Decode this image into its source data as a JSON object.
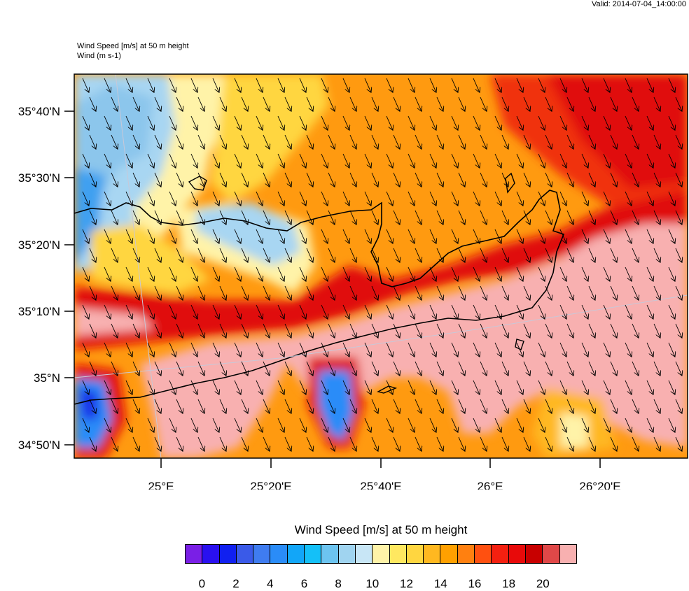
{
  "header": {
    "valid": "Valid: 2014-07-04_14:00:00",
    "field_title": "Wind Speed [m/s] at 50 m height",
    "vector_title": "Wind    (m s-1)"
  },
  "map": {
    "lat_labels": [
      "35°40'N",
      "35°30'N",
      "35°20'N",
      "35°10'N",
      "35°N",
      "34°50'N"
    ],
    "lon_labels": [
      "25°E",
      "25°20'E",
      "25°40'E",
      "26°E",
      "26°20'E"
    ],
    "wind_direction": "north-northwest (arrows point south-southeast)"
  },
  "colorbar": {
    "title": "Wind Speed [m/s] at 50 m height",
    "tick_labels": [
      "0",
      "2",
      "4",
      "6",
      "8",
      "10",
      "12",
      "14",
      "16",
      "18",
      "20"
    ],
    "colors": [
      "#7a1fe6",
      "#2a10f0",
      "#1020f0",
      "#3a5ae8",
      "#3f7cf0",
      "#2a8cf8",
      "#12a6f8",
      "#14c0f8",
      "#6cc4f0",
      "#a0d4f0",
      "#c8e6f6",
      "#fff3a8",
      "#ffe860",
      "#ffd640",
      "#ffb820",
      "#ffa000",
      "#ff8010",
      "#ff5010",
      "#f42010",
      "#e80a0a",
      "#c80000",
      "#e04848",
      "#f8b0b0"
    ]
  }
}
